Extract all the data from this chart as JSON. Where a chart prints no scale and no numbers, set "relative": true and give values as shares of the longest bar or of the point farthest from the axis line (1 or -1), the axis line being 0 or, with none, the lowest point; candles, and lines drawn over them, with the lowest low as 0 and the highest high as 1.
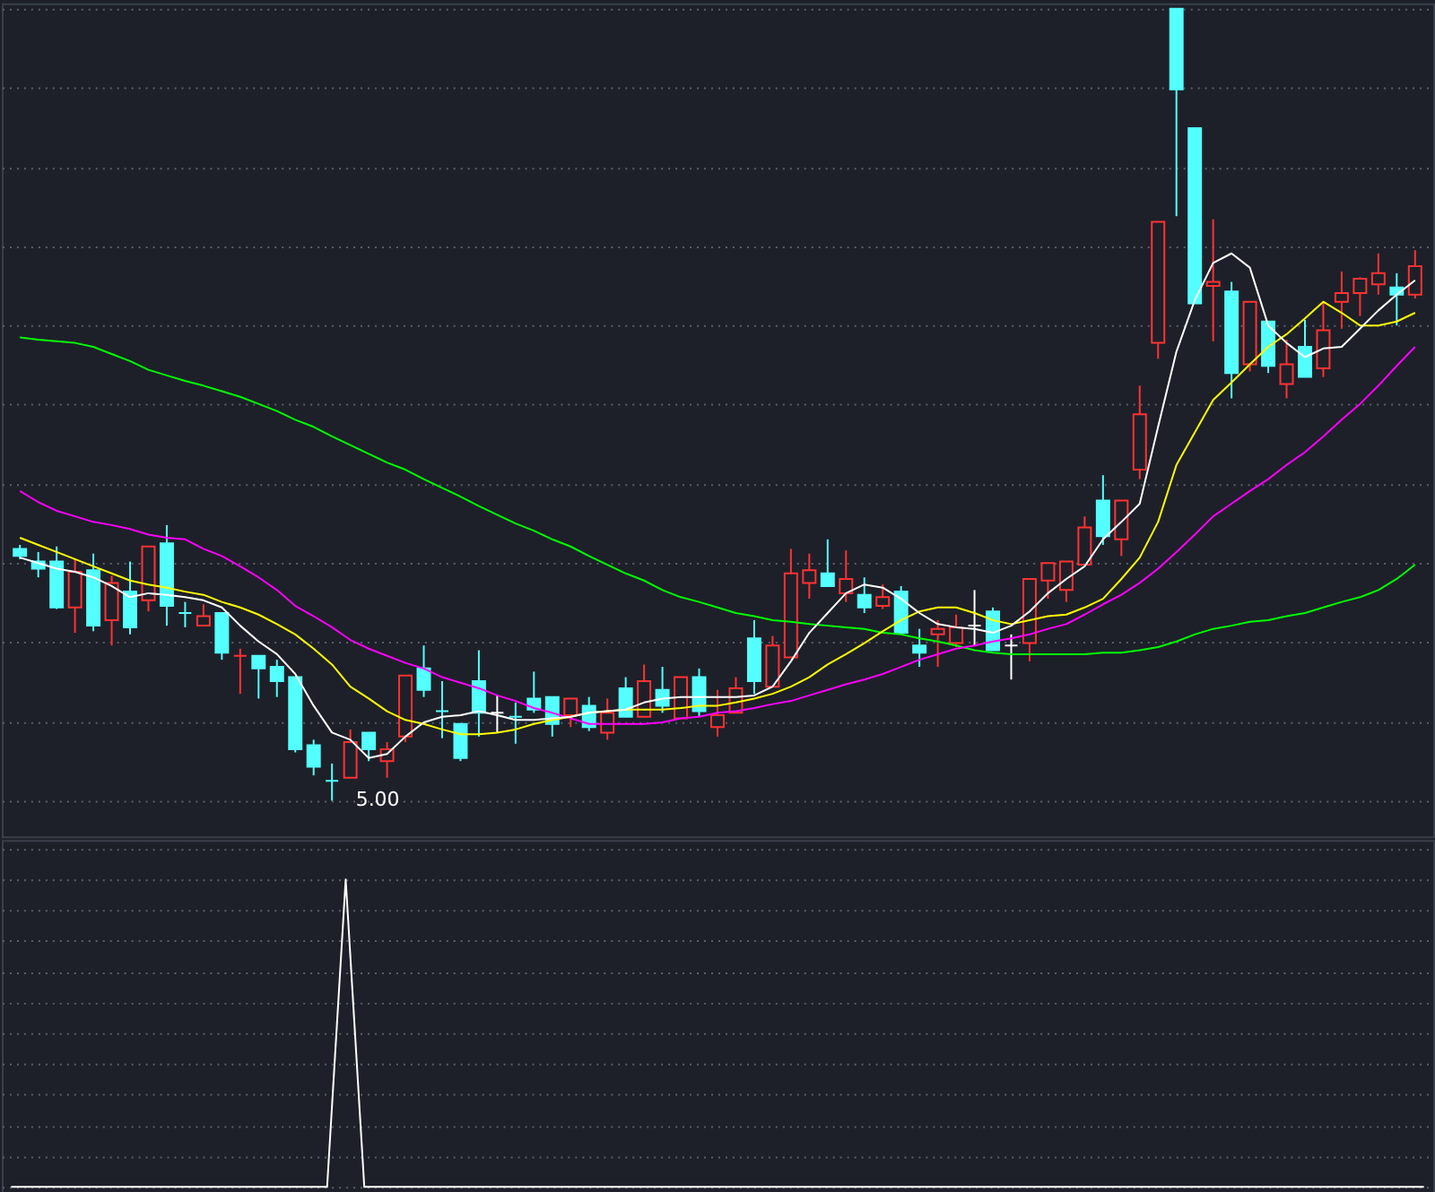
{
  "chart_data": [
    {
      "type": "candlestick",
      "relative": true,
      "grid": "y",
      "categories": [
        null,
        null,
        null,
        null,
        null,
        null,
        null,
        null,
        null,
        null,
        null,
        null,
        null,
        null,
        null,
        null,
        null,
        null,
        null,
        null,
        null,
        null,
        null,
        null,
        null,
        null,
        null,
        null,
        null,
        null,
        null,
        null,
        null,
        null,
        null,
        null,
        null,
        null,
        null,
        null,
        null,
        null,
        null,
        null,
        null,
        null,
        null,
        null,
        null,
        null,
        null,
        null,
        null,
        null,
        null,
        null,
        null,
        null,
        null,
        null,
        null,
        null,
        null,
        null,
        null,
        null,
        null,
        null,
        null,
        null,
        null,
        null,
        null,
        null,
        null,
        null,
        null
      ],
      "ohlc": [
        [
          0.318,
          0.323,
          0.305,
          0.309
        ],
        [
          0.302,
          0.314,
          0.282,
          0.293
        ],
        [
          0.302,
          0.321,
          0.242,
          0.244
        ],
        [
          0.244,
          0.305,
          0.212,
          0.289
        ],
        [
          0.291,
          0.312,
          0.214,
          0.221
        ],
        [
          0.228,
          0.284,
          0.196,
          0.275
        ],
        [
          0.264,
          0.302,
          0.21,
          0.219
        ],
        [
          0.253,
          0.321,
          0.239,
          0.321
        ],
        [
          0.325,
          0.348,
          0.221,
          0.246
        ],
        [
          0.237,
          0.251,
          0.219,
          0.237
        ],
        [
          0.221,
          0.248,
          0.221,
          0.233
        ],
        [
          0.237,
          0.237,
          0.178,
          0.187
        ],
        [
          0.183,
          0.192,
          0.135,
          0.183
        ],
        [
          0.183,
          0.183,
          0.129,
          0.167
        ],
        [
          0.169,
          0.178,
          0.131,
          0.151
        ],
        [
          0.156,
          0.156,
          0.061,
          0.065
        ],
        [
          0.07,
          0.077,
          0.032,
          0.043
        ],
        [
          0.025,
          0.047,
          0.0,
          0.025
        ],
        [
          0.029,
          0.09,
          0.029,
          0.074
        ],
        [
          0.086,
          0.086,
          0.05,
          0.065
        ],
        [
          0.05,
          0.074,
          0.029,
          0.065
        ],
        [
          0.081,
          0.158,
          0.074,
          0.158
        ],
        [
          0.167,
          0.196,
          0.131,
          0.14
        ],
        [
          0.113,
          0.151,
          0.079,
          0.113
        ],
        [
          0.097,
          0.097,
          0.05,
          0.054
        ],
        [
          0.151,
          0.19,
          0.081,
          0.111
        ],
        [
          0.111,
          0.133,
          0.086,
          0.111
        ],
        [
          0.106,
          0.124,
          0.072,
          0.106
        ],
        [
          0.129,
          0.163,
          0.111,
          0.115
        ],
        [
          0.131,
          0.131,
          0.081,
          0.097
        ],
        [
          0.108,
          0.129,
          0.093,
          0.129
        ],
        [
          0.12,
          0.131,
          0.088,
          0.093
        ],
        [
          0.086,
          0.129,
          0.077,
          0.111
        ],
        [
          0.142,
          0.156,
          0.106,
          0.106
        ],
        [
          0.106,
          0.172,
          0.106,
          0.151
        ],
        [
          0.14,
          0.169,
          0.111,
          0.12
        ],
        [
          0.104,
          0.156,
          0.104,
          0.156
        ],
        [
          0.156,
          0.167,
          0.106,
          0.113
        ],
        [
          0.093,
          0.14,
          0.081,
          0.108
        ],
        [
          0.111,
          0.156,
          0.111,
          0.142
        ],
        [
          0.205,
          0.228,
          0.135,
          0.151
        ],
        [
          0.144,
          0.208,
          0.144,
          0.196
        ],
        [
          0.181,
          0.318,
          0.181,
          0.287
        ],
        [
          0.275,
          0.312,
          0.255,
          0.291
        ],
        [
          0.287,
          0.33,
          0.271,
          0.271
        ],
        [
          0.262,
          0.316,
          0.251,
          0.28
        ],
        [
          0.26,
          0.282,
          0.237,
          0.244
        ],
        [
          0.246,
          0.273,
          0.242,
          0.257
        ],
        [
          0.264,
          0.271,
          0.212,
          0.212
        ],
        [
          0.196,
          0.217,
          0.169,
          0.187
        ],
        [
          0.21,
          0.228,
          0.169,
          0.217
        ],
        [
          0.199,
          0.235,
          0.194,
          0.219
        ],
        [
          0.221,
          0.266,
          0.196,
          0.221
        ],
        [
          0.239,
          0.244,
          0.19,
          0.19
        ],
        [
          0.196,
          0.21,
          0.153,
          0.196
        ],
        [
          0.199,
          0.28,
          0.176,
          0.28
        ],
        [
          0.278,
          0.3,
          0.255,
          0.3
        ],
        [
          0.266,
          0.302,
          0.251,
          0.302
        ],
        [
          0.298,
          0.359,
          0.298,
          0.345
        ],
        [
          0.379,
          0.411,
          0.323,
          0.334
        ],
        [
          0.33,
          0.379,
          0.309,
          0.379
        ],
        [
          0.418,
          0.524,
          0.406,
          0.488
        ],
        [
          0.578,
          0.731,
          0.558,
          0.731
        ],
        [
          1.0,
          1.0,
          0.738,
          0.898
        ],
        [
          0.849,
          0.849,
          0.628,
          0.628
        ],
        [
          0.65,
          0.734,
          0.58,
          0.655
        ],
        [
          0.643,
          0.655,
          0.508,
          0.54
        ],
        [
          0.551,
          0.63,
          0.542,
          0.63
        ],
        [
          0.605,
          0.605,
          0.54,
          0.549
        ],
        [
          0.526,
          0.582,
          0.508,
          0.551
        ],
        [
          0.573,
          0.607,
          0.535,
          0.535
        ],
        [
          0.546,
          0.63,
          0.535,
          0.594
        ],
        [
          0.63,
          0.668,
          0.596,
          0.641
        ],
        [
          0.641,
          0.661,
          0.612,
          0.659
        ],
        [
          0.652,
          0.691,
          0.639,
          0.666
        ],
        [
          0.648,
          0.666,
          0.6,
          0.639
        ],
        [
          0.639,
          0.695,
          0.634,
          0.675
        ]
      ],
      "colors": [
        "#54ffff",
        "#54ffff",
        "#54ffff",
        "#ff3232",
        "#54ffff",
        "#ff3232",
        "#54ffff",
        "#ff3232",
        "#54ffff",
        "#54ffff",
        "#ff3232",
        "#54ffff",
        "#ff3232",
        "#54ffff",
        "#54ffff",
        "#54ffff",
        "#54ffff",
        "#54ffff",
        "#ff3232",
        "#54ffff",
        "#ff3232",
        "#ff3232",
        "#54ffff",
        "#54ffff",
        "#54ffff",
        "#54ffff",
        "#ffffff",
        "#54ffff",
        "#54ffff",
        "#54ffff",
        "#ff3232",
        "#54ffff",
        "#ff3232",
        "#54ffff",
        "#ff3232",
        "#54ffff",
        "#ff3232",
        "#54ffff",
        "#ff3232",
        "#ff3232",
        "#54ffff",
        "#ff3232",
        "#ff3232",
        "#ff3232",
        "#54ffff",
        "#ff3232",
        "#54ffff",
        "#ff3232",
        "#54ffff",
        "#54ffff",
        "#ff3232",
        "#ff3232",
        "#ffffff",
        "#54ffff",
        "#ffffff",
        "#ff3232",
        "#ff3232",
        "#ff3232",
        "#ff3232",
        "#54ffff",
        "#ff3232",
        "#ff3232",
        "#ff3232",
        "#54ffff",
        "#54ffff",
        "#ff3232",
        "#54ffff",
        "#ff3232",
        "#54ffff",
        "#ff3232",
        "#54ffff",
        "#ff3232",
        "#ff3232",
        "#ff3232",
        "#ff3232",
        "#54ffff",
        "#ff3232"
      ],
      "series": [
        {
          "type": "line",
          "color": "#00ff00",
          "values": [
            0.585,
            0.582,
            0.58,
            0.578,
            0.573,
            0.564,
            0.555,
            0.544,
            0.537,
            0.53,
            0.524,
            0.517,
            0.51,
            0.501,
            0.492,
            0.481,
            0.472,
            0.46,
            0.449,
            0.438,
            0.427,
            0.418,
            0.406,
            0.395,
            0.384,
            0.372,
            0.361,
            0.35,
            0.341,
            0.33,
            0.321,
            0.309,
            0.298,
            0.287,
            0.278,
            0.266,
            0.257,
            0.251,
            0.244,
            0.237,
            0.233,
            0.228,
            0.226,
            0.223,
            0.221,
            0.219,
            0.217,
            0.212,
            0.21,
            0.205,
            0.201,
            0.196,
            0.19,
            0.187,
            0.185,
            0.185,
            0.185,
            0.185,
            0.185,
            0.187,
            0.187,
            0.19,
            0.194,
            0.201,
            0.21,
            0.217,
            0.221,
            0.226,
            0.228,
            0.233,
            0.237,
            0.244,
            0.251,
            0.257,
            0.266,
            0.28,
            0.298
          ]
        },
        {
          "type": "line",
          "color": "#ff00ff",
          "values": [
            0.391,
            0.377,
            0.366,
            0.359,
            0.352,
            0.348,
            0.343,
            0.336,
            0.332,
            0.33,
            0.318,
            0.309,
            0.296,
            0.282,
            0.266,
            0.246,
            0.233,
            0.219,
            0.203,
            0.192,
            0.183,
            0.174,
            0.167,
            0.156,
            0.149,
            0.142,
            0.133,
            0.126,
            0.117,
            0.111,
            0.104,
            0.097,
            0.097,
            0.097,
            0.097,
            0.099,
            0.104,
            0.106,
            0.111,
            0.113,
            0.117,
            0.122,
            0.126,
            0.133,
            0.14,
            0.147,
            0.153,
            0.16,
            0.169,
            0.178,
            0.185,
            0.192,
            0.196,
            0.201,
            0.205,
            0.21,
            0.217,
            0.223,
            0.235,
            0.248,
            0.26,
            0.275,
            0.293,
            0.314,
            0.336,
            0.359,
            0.375,
            0.391,
            0.406,
            0.424,
            0.44,
            0.46,
            0.481,
            0.501,
            0.524,
            0.549,
            0.573
          ]
        },
        {
          "type": "line",
          "color": "#ffff00",
          "values": [
            0.332,
            0.323,
            0.314,
            0.305,
            0.296,
            0.287,
            0.278,
            0.273,
            0.269,
            0.264,
            0.26,
            0.251,
            0.244,
            0.235,
            0.223,
            0.21,
            0.192,
            0.172,
            0.144,
            0.129,
            0.113,
            0.102,
            0.097,
            0.09,
            0.084,
            0.084,
            0.086,
            0.09,
            0.097,
            0.102,
            0.106,
            0.111,
            0.113,
            0.115,
            0.115,
            0.115,
            0.117,
            0.12,
            0.12,
            0.124,
            0.129,
            0.135,
            0.144,
            0.156,
            0.172,
            0.185,
            0.199,
            0.214,
            0.228,
            0.239,
            0.244,
            0.244,
            0.237,
            0.228,
            0.223,
            0.228,
            0.233,
            0.235,
            0.244,
            0.255,
            0.28,
            0.307,
            0.352,
            0.424,
            0.465,
            0.506,
            0.528,
            0.551,
            0.573,
            0.589,
            0.609,
            0.63,
            0.616,
            0.6,
            0.6,
            0.605,
            0.616
          ]
        },
        {
          "type": "line",
          "color": "#ffffff",
          "values": [
            0.307,
            0.3,
            0.293,
            0.289,
            0.282,
            0.271,
            0.257,
            0.262,
            0.26,
            0.257,
            0.253,
            0.244,
            0.221,
            0.201,
            0.185,
            0.16,
            0.12,
            0.086,
            0.077,
            0.054,
            0.059,
            0.081,
            0.099,
            0.106,
            0.108,
            0.113,
            0.108,
            0.102,
            0.102,
            0.104,
            0.106,
            0.111,
            0.113,
            0.115,
            0.124,
            0.129,
            0.131,
            0.131,
            0.131,
            0.131,
            0.133,
            0.144,
            0.176,
            0.212,
            0.237,
            0.262,
            0.273,
            0.269,
            0.255,
            0.237,
            0.223,
            0.219,
            0.217,
            0.212,
            0.221,
            0.239,
            0.262,
            0.28,
            0.296,
            0.33,
            0.352,
            0.375,
            0.472,
            0.567,
            0.632,
            0.679,
            0.691,
            0.673,
            0.6,
            0.578,
            0.56,
            0.571,
            0.573,
            0.596,
            0.619,
            0.639,
            0.657
          ]
        }
      ],
      "annotations": [
        "5.00"
      ]
    },
    {
      "type": "line",
      "relative": true,
      "grid": "y",
      "color": "#ffffff",
      "categories": [
        null,
        null,
        null,
        null,
        null,
        null,
        null,
        null,
        null,
        null,
        null,
        null,
        null,
        null,
        null,
        null,
        null,
        null,
        null,
        null,
        null,
        null,
        null,
        null,
        null,
        null,
        null,
        null,
        null,
        null,
        null,
        null,
        null,
        null,
        null,
        null,
        null,
        null,
        null,
        null,
        null,
        null,
        null,
        null,
        null,
        null,
        null,
        null,
        null,
        null,
        null,
        null,
        null,
        null,
        null,
        null,
        null,
        null,
        null,
        null,
        null,
        null,
        null,
        null,
        null,
        null,
        null,
        null,
        null,
        null,
        null,
        null,
        null,
        null,
        null,
        null,
        null
      ],
      "values": [
        0,
        0,
        0,
        0,
        0,
        0,
        0,
        0,
        0,
        0,
        0,
        0,
        0,
        0,
        0,
        0,
        0,
        0,
        1,
        0,
        0,
        0,
        0,
        0,
        0,
        0,
        0,
        0,
        0,
        0,
        0,
        0,
        0,
        0,
        0,
        0,
        0,
        0,
        0,
        0,
        0,
        0,
        0,
        0,
        0,
        0,
        0,
        0,
        0,
        0,
        0,
        0,
        0,
        0,
        0,
        0,
        0,
        0,
        0,
        0,
        0,
        0,
        0,
        0,
        0,
        0,
        0,
        0,
        0,
        0,
        0,
        0,
        0,
        0,
        0,
        0,
        0
      ]
    }
  ]
}
